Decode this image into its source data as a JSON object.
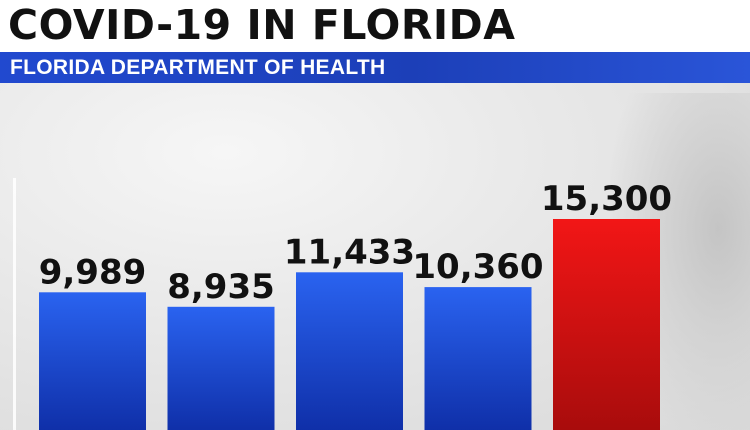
{
  "header": {
    "title": "COVID-19 IN FLORIDA",
    "subtitle": "FLORIDA DEPARTMENT OF HEALTH"
  },
  "colors": {
    "bar_blue_top": "#2a63f0",
    "bar_blue_bottom": "#0f2fa8",
    "bar_red_top": "#f21616",
    "bar_red_bottom": "#a80c0c",
    "label": "#111111"
  },
  "chart_data": {
    "type": "bar",
    "categories": [
      "",
      "",
      "",
      "",
      ""
    ],
    "values": [
      9989,
      8935,
      11433,
      10360,
      15300
    ],
    "labels": [
      "9,989",
      "8,935",
      "11,433",
      "10,360",
      "15,300"
    ],
    "highlight_index": 4,
    "title": "COVID-19 IN FLORIDA",
    "subtitle": "FLORIDA DEPARTMENT OF HEALTH",
    "xlabel": "",
    "ylabel": "",
    "grid": false,
    "legend": "none"
  }
}
